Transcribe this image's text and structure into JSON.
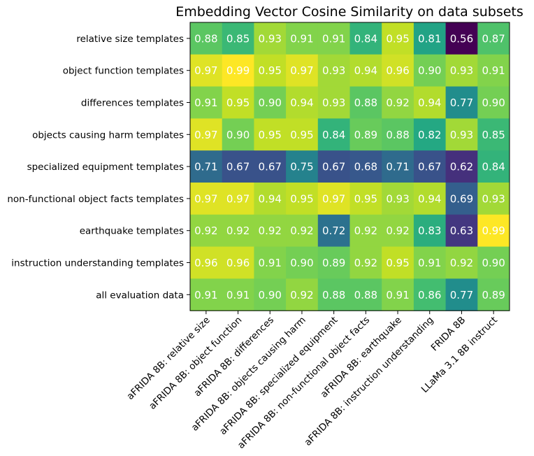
{
  "chart_data": {
    "type": "heatmap",
    "title": "Embedding Vector Cosine Similarity on data subsets",
    "xlabel": "",
    "ylabel": "",
    "colormap": "viridis",
    "vmin": 0.56,
    "vmax": 0.99,
    "rows": [
      "relative size templates",
      "object function templates",
      "differences templates",
      "objects causing harm templates",
      "specialized equipment templates",
      "non-functional object facts templates",
      "earthquake templates",
      "instruction understanding templates",
      "all evaluation data"
    ],
    "columns": [
      "aFRIDA 8B: relative size",
      "aFRIDA 8B: object function",
      "aFRIDA 8B: differences",
      "aFRIDA 8B: objects causing harm",
      "aFRIDA 8B: specialized equipment",
      "aFRIDA 8B: non-functional object facts",
      "aFRIDA 8B: earthquake",
      "aFRIDA 8B: instruction understanding",
      "FRIDA 8B",
      "LLaMa 3.1 8B instruct"
    ],
    "values": [
      [
        0.88,
        0.85,
        0.93,
        0.91,
        0.91,
        0.84,
        0.95,
        0.81,
        0.56,
        0.87
      ],
      [
        0.97,
        0.99,
        0.95,
        0.97,
        0.93,
        0.94,
        0.96,
        0.9,
        0.93,
        0.91
      ],
      [
        0.91,
        0.95,
        0.9,
        0.94,
        0.93,
        0.88,
        0.92,
        0.94,
        0.77,
        0.9
      ],
      [
        0.97,
        0.9,
        0.95,
        0.95,
        0.84,
        0.89,
        0.88,
        0.82,
        0.93,
        0.85
      ],
      [
        0.71,
        0.67,
        0.67,
        0.75,
        0.67,
        0.68,
        0.71,
        0.67,
        0.62,
        0.84
      ],
      [
        0.97,
        0.97,
        0.94,
        0.95,
        0.97,
        0.95,
        0.93,
        0.94,
        0.69,
        0.93
      ],
      [
        0.92,
        0.92,
        0.92,
        0.92,
        0.72,
        0.92,
        0.92,
        0.83,
        0.63,
        0.99
      ],
      [
        0.96,
        0.96,
        0.91,
        0.9,
        0.89,
        0.92,
        0.95,
        0.91,
        0.92,
        0.9
      ],
      [
        0.91,
        0.91,
        0.9,
        0.92,
        0.88,
        0.88,
        0.91,
        0.86,
        0.77,
        0.89
      ]
    ]
  }
}
